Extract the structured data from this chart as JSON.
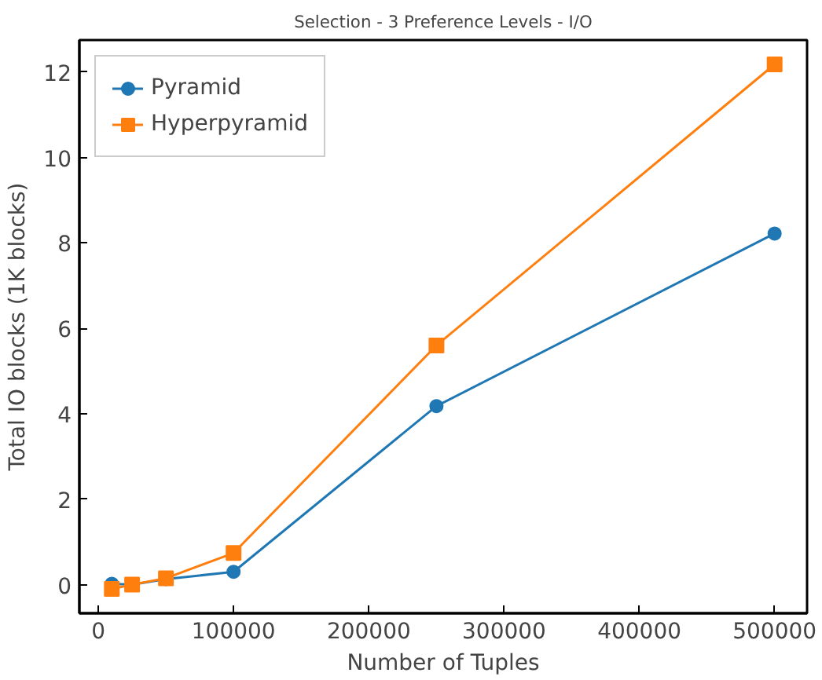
{
  "chart_data": {
    "type": "line",
    "title": "Selection - 3 Preference Levels - I/O",
    "xlabel": "Number of Tuples",
    "ylabel": "Total IO blocks (1K blocks)",
    "x": [
      10000,
      25000,
      50000,
      100000,
      250000,
      500000
    ],
    "series": [
      {
        "name": "Pyramid",
        "color": "#1f77b4",
        "marker": "circle",
        "values": [
          0.02,
          0.0,
          0.13,
          0.3,
          4.18,
          8.22
        ]
      },
      {
        "name": "Hyperpyramid",
        "color": "#ff7f0e",
        "marker": "square",
        "values": [
          -0.1,
          0.0,
          0.15,
          0.74,
          5.6,
          12.18
        ]
      }
    ],
    "xlim": [
      -14000,
      524000
    ],
    "ylim": [
      -0.67,
      12.75
    ],
    "xticks": [
      0,
      100000,
      200000,
      300000,
      400000,
      500000
    ],
    "yticks": [
      0,
      2,
      4,
      6,
      8,
      10,
      12
    ],
    "grid": false,
    "legend": "top left",
    "line_style": "solid"
  }
}
